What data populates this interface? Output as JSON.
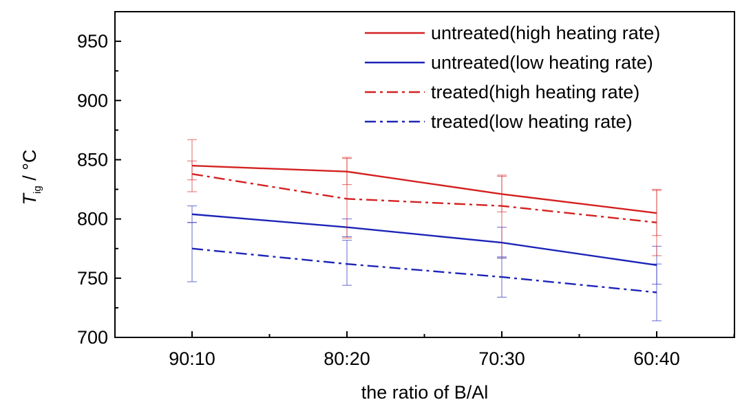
{
  "chart_data": {
    "type": "line",
    "title": "",
    "xlabel": "the ratio of B/Al",
    "ylabel": {
      "main": "T",
      "subscript": "ig",
      "unit": " / °C"
    },
    "categories": [
      "90:10",
      "80:20",
      "70:30",
      "60:40"
    ],
    "ylim": [
      700,
      975
    ],
    "yticks": [
      700,
      750,
      800,
      850,
      900,
      950
    ],
    "grid": false,
    "legend_position": "top-right",
    "series": [
      {
        "name": "untreated(high heating rate)",
        "color": "#d42020",
        "dash": "solid",
        "values": [
          845,
          840,
          821,
          805
        ],
        "err_low": [
          823,
          829,
          806,
          786
        ],
        "err_high": [
          867,
          852,
          837,
          825
        ]
      },
      {
        "name": "untreated(low heating rate)",
        "color": "#1c24b8",
        "dash": "solid",
        "values": [
          804,
          793,
          780,
          761
        ],
        "err_low": [
          797,
          785,
          768,
          745
        ],
        "err_high": [
          811,
          800,
          793,
          777
        ]
      },
      {
        "name": "treated(high heating rate)",
        "color": "#d42020",
        "dash": "dashdot",
        "values": [
          838,
          817,
          811,
          797
        ],
        "err_low": [
          833,
          784,
          767,
          769
        ],
        "err_high": [
          849,
          851,
          836,
          824
        ]
      },
      {
        "name": "treated(low heating rate)",
        "color": "#1c24b8",
        "dash": "dashdot",
        "values": [
          775,
          762,
          751,
          738
        ],
        "err_low": [
          747,
          744,
          734,
          714
        ],
        "err_high": [
          797,
          782,
          767,
          762
        ]
      }
    ]
  }
}
